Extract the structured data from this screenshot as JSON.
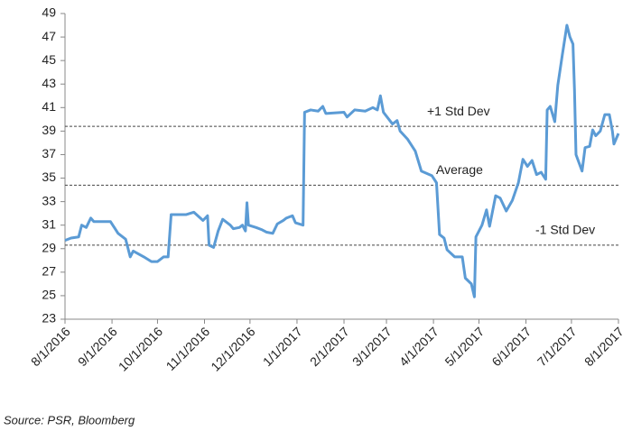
{
  "chart_data": {
    "type": "line",
    "source": "Source: PSR, Bloomberg",
    "color": "#5b9bd5",
    "x": [
      "2016-08-01",
      "2016-08-05",
      "2016-08-10",
      "2016-08-12",
      "2016-08-15",
      "2016-08-18",
      "2016-08-20",
      "2016-08-31",
      "2016-09-05",
      "2016-09-10",
      "2016-09-13",
      "2016-09-15",
      "2016-09-22",
      "2016-09-27",
      "2016-10-01",
      "2016-10-05",
      "2016-10-08",
      "2016-10-10",
      "2016-10-20",
      "2016-10-25",
      "2016-10-31",
      "2016-11-03",
      "2016-11-04",
      "2016-11-07",
      "2016-11-10",
      "2016-11-13",
      "2016-11-18",
      "2016-11-20",
      "2016-11-24",
      "2016-11-26",
      "2016-11-28",
      "2016-11-29",
      "2016-11-30",
      "2016-12-05",
      "2016-12-09",
      "2016-12-12",
      "2016-12-16",
      "2016-12-19",
      "2016-12-23",
      "2016-12-25",
      "2016-12-29",
      "2016-12-31",
      "2017-01-05",
      "2017-01-06",
      "2017-01-10",
      "2017-01-15",
      "2017-01-18",
      "2017-01-20",
      "2017-02-01",
      "2017-02-03",
      "2017-02-08",
      "2017-02-15",
      "2017-02-20",
      "2017-02-23",
      "2017-02-25",
      "2017-02-27",
      "2017-03-05",
      "2017-03-08",
      "2017-03-10",
      "2017-03-15",
      "2017-03-20",
      "2017-03-24",
      "2017-03-31",
      "2017-04-03",
      "2017-04-05",
      "2017-04-08",
      "2017-04-10",
      "2017-04-15",
      "2017-04-20",
      "2017-04-22",
      "2017-04-26",
      "2017-04-28",
      "2017-04-29",
      "2017-05-03",
      "2017-05-06",
      "2017-05-08",
      "2017-05-12",
      "2017-05-15",
      "2017-05-19",
      "2017-05-23",
      "2017-05-27",
      "2017-05-30",
      "2017-06-02",
      "2017-06-05",
      "2017-06-08",
      "2017-06-11",
      "2017-06-14",
      "2017-06-15",
      "2017-06-17",
      "2017-06-20",
      "2017-06-22",
      "2017-06-25",
      "2017-06-28",
      "2017-06-30",
      "2017-07-02",
      "2017-07-03",
      "2017-07-04",
      "2017-07-08",
      "2017-07-10",
      "2017-07-13",
      "2017-07-15",
      "2017-07-17",
      "2017-07-20",
      "2017-07-23",
      "2017-07-26",
      "2017-07-28",
      "2017-07-29",
      "2017-08-01"
    ],
    "values": [
      29.7,
      29.9,
      30.0,
      31.0,
      30.8,
      31.6,
      31.3,
      31.3,
      30.3,
      29.8,
      28.3,
      28.8,
      28.3,
      27.9,
      27.9,
      28.3,
      28.3,
      31.9,
      31.9,
      32.1,
      31.4,
      31.8,
      29.3,
      29.1,
      30.5,
      31.5,
      31.0,
      30.7,
      30.8,
      31.0,
      30.5,
      32.9,
      31.0,
      30.8,
      30.6,
      30.4,
      30.3,
      31.1,
      31.4,
      31.6,
      31.8,
      31.2,
      31.0,
      40.6,
      40.8,
      40.7,
      41.1,
      40.5,
      40.6,
      40.2,
      40.8,
      40.7,
      41.0,
      40.8,
      42.0,
      40.6,
      39.6,
      39.9,
      39.0,
      38.3,
      37.3,
      35.6,
      35.2,
      34.6,
      30.2,
      29.9,
      28.9,
      28.3,
      28.3,
      26.5,
      26.0,
      24.9,
      30.0,
      31.0,
      32.3,
      30.9,
      33.5,
      33.3,
      32.2,
      33.1,
      34.6,
      36.6,
      36.0,
      36.5,
      35.3,
      35.5,
      34.9,
      40.8,
      41.1,
      39.8,
      42.9,
      45.5,
      48.0,
      47.0,
      46.4,
      42.5,
      37.0,
      35.6,
      37.6,
      37.7,
      39.1,
      38.6,
      39.0,
      40.4,
      40.4,
      39.0,
      37.9,
      38.8
    ],
    "reference_lines": [
      {
        "value": 39.4,
        "label": "+1 Std Dev"
      },
      {
        "value": 34.4,
        "label": "Average"
      },
      {
        "value": 29.3,
        "label": "-1 Std Dev"
      }
    ],
    "ylim": [
      23,
      49
    ],
    "yticks": [
      23,
      25,
      27,
      29,
      31,
      33,
      35,
      37,
      39,
      41,
      43,
      45,
      47,
      49
    ],
    "xlim": [
      "2016-08-01",
      "2017-08-01"
    ],
    "xticks": [
      {
        "value": "2016-08-01",
        "label": "8/1/2016"
      },
      {
        "value": "2016-09-01",
        "label": "9/1/2016"
      },
      {
        "value": "2016-10-01",
        "label": "10/1/2016"
      },
      {
        "value": "2016-11-01",
        "label": "11/1/2016"
      },
      {
        "value": "2016-12-01",
        "label": "12/1/2016"
      },
      {
        "value": "2017-01-01",
        "label": "1/1/2017"
      },
      {
        "value": "2017-02-01",
        "label": "2/1/2017"
      },
      {
        "value": "2017-03-01",
        "label": "3/1/2017"
      },
      {
        "value": "2017-04-01",
        "label": "4/1/2017"
      },
      {
        "value": "2017-05-01",
        "label": "5/1/2017"
      },
      {
        "value": "2017-06-01",
        "label": "6/1/2017"
      },
      {
        "value": "2017-07-01",
        "label": "7/1/2017"
      },
      {
        "value": "2017-08-01",
        "label": "8/1/2017"
      }
    ],
    "grid": false
  }
}
